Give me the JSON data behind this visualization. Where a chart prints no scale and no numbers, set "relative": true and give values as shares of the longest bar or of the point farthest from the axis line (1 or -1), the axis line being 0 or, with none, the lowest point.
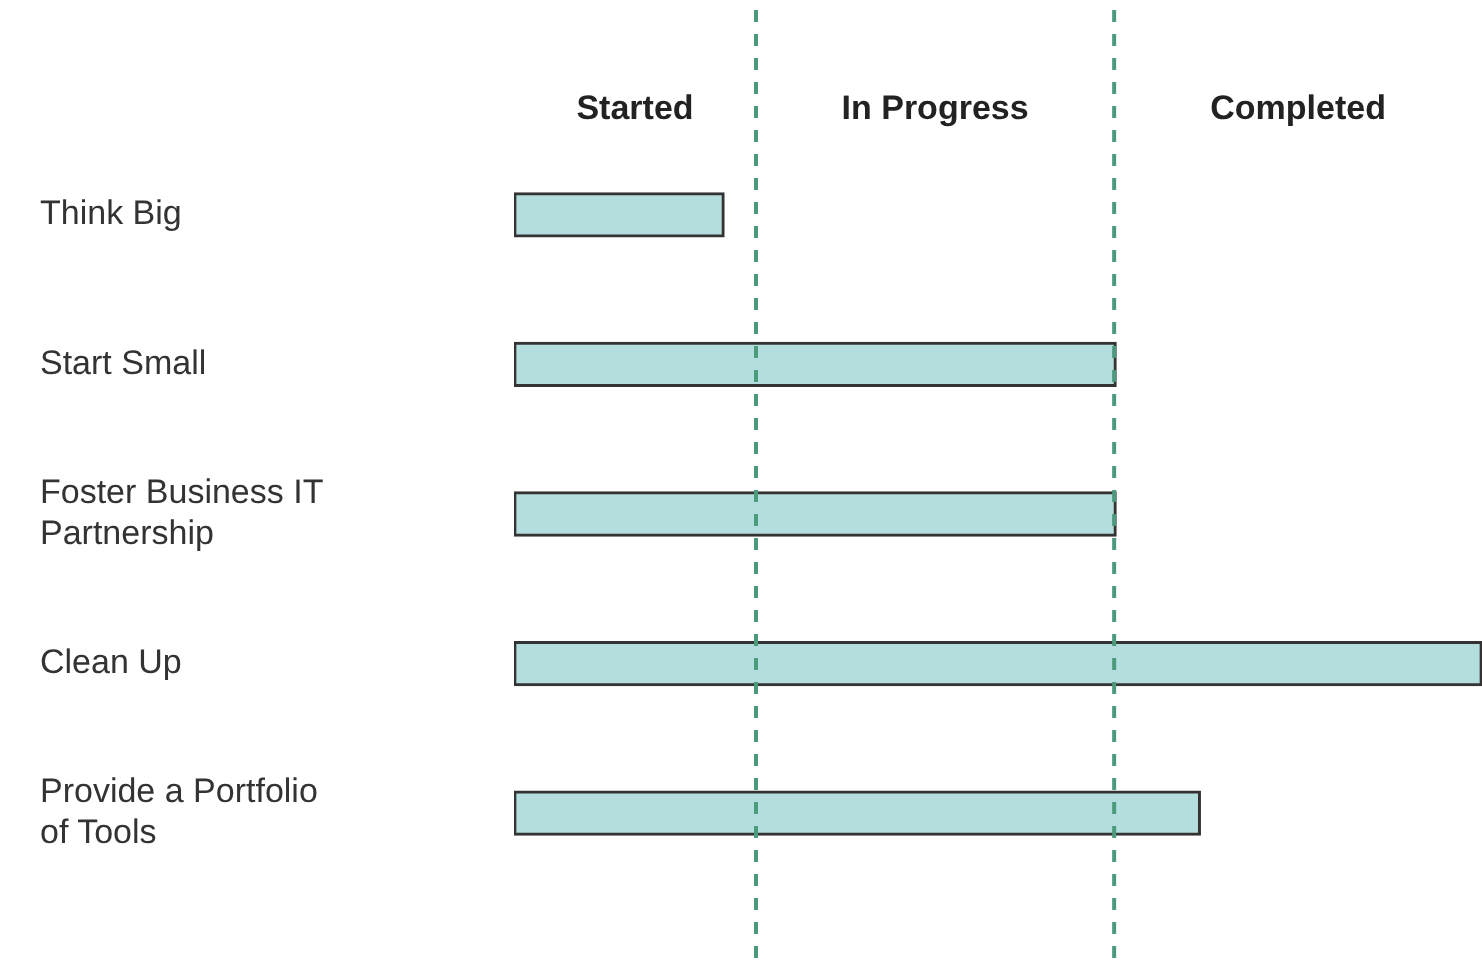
{
  "chart_data": {
    "type": "bar",
    "orientation": "horizontal",
    "relative": true,
    "categories": [
      "Think Big",
      "Start Small",
      "Foster Business IT Partnership",
      "Clean Up",
      "Provide a Portfolio of Tools"
    ],
    "values": [
      0.217,
      0.622,
      0.622,
      1,
      0.709
    ],
    "color": "#b4dedd",
    "ref_lines": [
      {
        "axis": "x",
        "value": 0.25,
        "color": "#4c9a7c",
        "line_style": "dashed"
      },
      {
        "axis": "x",
        "value": 0.62,
        "color": "#4c9a7c",
        "line_style": "dashed"
      }
    ],
    "annotations": [
      "Started",
      "In Progress",
      "Completed"
    ],
    "legend": false
  }
}
